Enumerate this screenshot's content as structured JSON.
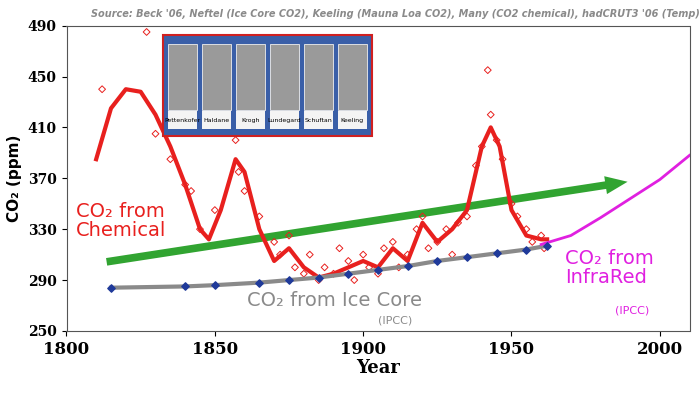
{
  "chart_data": {
    "type": "line",
    "source": "Source: Beck '06, Neftel (Ice Core CO2), Keeling (Mauna Loa CO2), Many (CO2 chemical), hadCRUT3 '06 (Temp)",
    "xlabel": "Year",
    "ylabel": "CO₂ (ppm)",
    "xlim": [
      1800,
      2010
    ],
    "ylim": [
      250,
      490
    ],
    "xticks": [
      1800,
      1850,
      1900,
      1950,
      2000
    ],
    "yticks": [
      250,
      290,
      330,
      370,
      410,
      450,
      490
    ],
    "portraits": [
      "Pettenkofer",
      "Haldane",
      "Krogh",
      "Lundegard",
      "Schuftan",
      "Keeling"
    ],
    "series": [
      {
        "name": "CO₂ from\nChemical",
        "type": "line",
        "color": "#e8201e",
        "line_style": "solid",
        "x": [
          1810,
          1815,
          1820,
          1825,
          1830,
          1835,
          1840,
          1845,
          1848,
          1852,
          1857,
          1860,
          1865,
          1870,
          1875,
          1880,
          1885,
          1890,
          1895,
          1900,
          1905,
          1910,
          1915,
          1920,
          1925,
          1930,
          1935,
          1940,
          1943,
          1946,
          1950,
          1955,
          1960,
          1962
        ],
        "values": [
          385,
          425,
          440,
          438,
          420,
          395,
          365,
          330,
          322,
          345,
          385,
          375,
          330,
          305,
          315,
          300,
          292,
          295,
          300,
          305,
          300,
          315,
          305,
          335,
          320,
          330,
          345,
          395,
          410,
          395,
          345,
          325,
          322,
          322
        ]
      },
      {
        "type": "scatter",
        "color": "#e8201e",
        "marker": "diamond",
        "x": [
          1812,
          1827,
          1830,
          1835,
          1840,
          1842,
          1845,
          1850,
          1857,
          1858,
          1860,
          1865,
          1870,
          1872,
          1875,
          1877,
          1880,
          1882,
          1885,
          1887,
          1890,
          1892,
          1895,
          1897,
          1900,
          1902,
          1905,
          1907,
          1910,
          1912,
          1915,
          1918,
          1920,
          1922,
          1925,
          1928,
          1930,
          1932,
          1935,
          1938,
          1940,
          1942,
          1943,
          1945,
          1947,
          1950,
          1952,
          1955,
          1957,
          1960,
          1961
        ],
        "values": [
          440,
          485,
          405,
          385,
          365,
          360,
          330,
          345,
          400,
          375,
          360,
          340,
          320,
          310,
          325,
          300,
          295,
          310,
          290,
          300,
          295,
          315,
          305,
          290,
          310,
          300,
          295,
          315,
          320,
          300,
          310,
          330,
          340,
          315,
          320,
          330,
          310,
          335,
          340,
          380,
          395,
          455,
          420,
          400,
          385,
          350,
          340,
          330,
          320,
          325,
          315
        ]
      },
      {
        "name": "CO₂ from Ice Core",
        "note": "(IPCC)",
        "type": "line",
        "color": "#8a8a8a",
        "line_style": "solid",
        "x": [
          1815,
          1840,
          1850,
          1865,
          1875,
          1885,
          1895,
          1905,
          1915,
          1925,
          1935,
          1945,
          1955,
          1962
        ],
        "values": [
          284,
          285,
          286,
          288,
          290,
          292,
          295,
          298,
          301,
          305,
          308,
          311,
          314,
          317
        ]
      },
      {
        "type": "scatter",
        "color": "#1f3a9a",
        "marker": "diamond",
        "x": [
          1815,
          1840,
          1850,
          1865,
          1875,
          1885,
          1895,
          1905,
          1915,
          1925,
          1935,
          1945,
          1955,
          1962
        ],
        "values": [
          284,
          285,
          286,
          288,
          290,
          292,
          295,
          298,
          301,
          305,
          308,
          311,
          314,
          317
        ]
      },
      {
        "name": "CO₂ from\nInfraRed",
        "note": "(IPCC)",
        "type": "line",
        "color": "#e020e0",
        "line_style": "solid",
        "x": [
          1960,
          1970,
          1980,
          1990,
          2000,
          2010
        ],
        "values": [
          318,
          325,
          339,
          354,
          369,
          388
        ]
      }
    ]
  }
}
